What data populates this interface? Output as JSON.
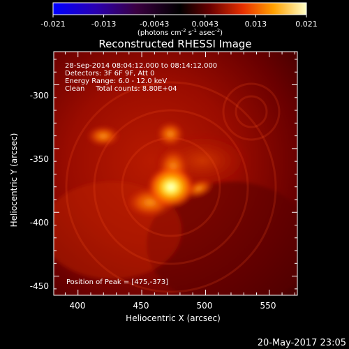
{
  "colorbar": {
    "tick_labels": [
      "-0.021",
      "-0.013",
      "-0.0043",
      "0.0043",
      "0.013",
      "0.021"
    ],
    "units_prefix": "(photons cm",
    "units_exp1": "-2",
    "units_mid": " s",
    "units_exp2": "-1",
    "units_mid2": " asec",
    "units_exp3": "-2",
    "units_suffix": ")",
    "range": [
      -0.021,
      0.021
    ]
  },
  "image": {
    "title": "Reconstructed RHESSI Image",
    "info_lines": [
      "28-Sep-2014 08:04:12.000 to 08:14:12.000",
      "Detectors: 3F 6F 9F, Att 0",
      "Energy Range: 6.0 - 12.0 keV",
      "Clean     Total counts: 8.80E+04"
    ],
    "peak_text": "Position of Peak = [475,-373]",
    "peak": {
      "x": 475,
      "y": -373
    }
  },
  "axes": {
    "xlabel": "Heliocentric X (arcsec)",
    "ylabel": "Heliocentric Y (arcsec)",
    "xlim": [
      381,
      572
    ],
    "ylim": [
      -465,
      -274
    ],
    "xticks": [
      "400",
      "450",
      "500",
      "550"
    ],
    "yticks": [
      "-300",
      "-350",
      "-400",
      "-450"
    ]
  },
  "footer": {
    "timestamp": "20-May-2017 23:05"
  }
}
